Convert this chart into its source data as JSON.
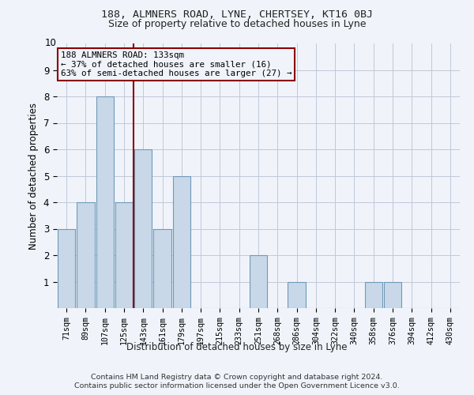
{
  "title1": "188, ALMNERS ROAD, LYNE, CHERTSEY, KT16 0BJ",
  "title2": "Size of property relative to detached houses in Lyne",
  "xlabel": "Distribution of detached houses by size in Lyne",
  "ylabel": "Number of detached properties",
  "categories": [
    "71sqm",
    "89sqm",
    "107sqm",
    "125sqm",
    "143sqm",
    "161sqm",
    "179sqm",
    "197sqm",
    "215sqm",
    "233sqm",
    "251sqm",
    "268sqm",
    "286sqm",
    "304sqm",
    "322sqm",
    "340sqm",
    "358sqm",
    "376sqm",
    "394sqm",
    "412sqm",
    "430sqm"
  ],
  "values": [
    3,
    4,
    8,
    4,
    6,
    3,
    5,
    0,
    0,
    0,
    2,
    0,
    1,
    0,
    0,
    0,
    1,
    1,
    0,
    0,
    0
  ],
  "bar_color": "#c8d8e8",
  "bar_edge_color": "#7099b8",
  "ref_line_x": 3.5,
  "ref_line_color": "#8b0000",
  "annotation_text": "188 ALMNERS ROAD: 133sqm\n← 37% of detached houses are smaller (16)\n63% of semi-detached houses are larger (27) →",
  "ylim": [
    0,
    10
  ],
  "yticks": [
    0,
    1,
    2,
    3,
    4,
    5,
    6,
    7,
    8,
    9,
    10
  ],
  "footer1": "Contains HM Land Registry data © Crown copyright and database right 2024.",
  "footer2": "Contains public sector information licensed under the Open Government Licence v3.0.",
  "bg_color": "#f0f4fa",
  "grid_color": "#c0c8d8"
}
